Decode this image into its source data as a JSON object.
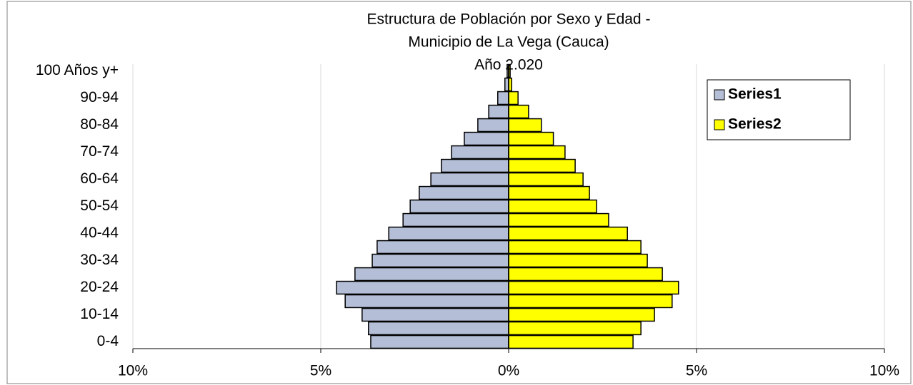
{
  "chart_data": {
    "type": "pyramid",
    "title": [
      "Estructura de Población por Sexo y Edad -",
      "Municipio de La Vega (Cauca)",
      "Año  2.020"
    ],
    "categories": [
      "0-4",
      null,
      "10-14",
      null,
      "20-24",
      null,
      "30-34",
      null,
      "40-44",
      null,
      "50-54",
      null,
      "60-64",
      null,
      "70-74",
      null,
      "80-84",
      null,
      "90-94",
      null,
      "100 Años y+"
    ],
    "series": [
      {
        "name": "Series1",
        "color": "#b4bed6",
        "values": [
          -3.67,
          -3.73,
          -3.9,
          -4.35,
          -4.58,
          -4.09,
          -3.63,
          -3.5,
          -3.19,
          -2.81,
          -2.62,
          -2.38,
          -2.07,
          -1.79,
          -1.52,
          -1.18,
          -0.82,
          -0.53,
          -0.29,
          -0.1,
          -0.04
        ]
      },
      {
        "name": "Series2",
        "color": "#ffff00",
        "values": [
          3.31,
          3.52,
          3.88,
          4.35,
          4.52,
          4.09,
          3.69,
          3.52,
          3.16,
          2.66,
          2.34,
          2.15,
          1.98,
          1.77,
          1.5,
          1.19,
          0.87,
          0.53,
          0.25,
          0.08,
          0.04
        ]
      }
    ],
    "xlim": [
      -10,
      10
    ],
    "xticks": [
      {
        "value": -10,
        "label": "10%"
      },
      {
        "value": -5,
        "label": "5%"
      },
      {
        "value": 0,
        "label": "0%"
      },
      {
        "value": 5,
        "label": "5%"
      },
      {
        "value": 10,
        "label": "10%"
      }
    ],
    "grid": true,
    "legend": "upper right"
  }
}
